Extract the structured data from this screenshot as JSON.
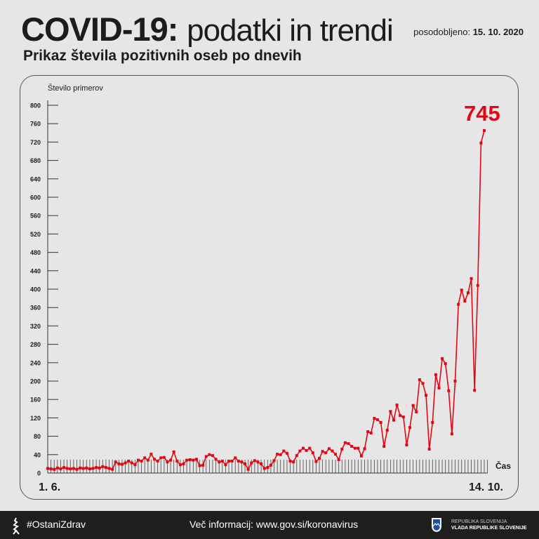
{
  "header": {
    "title_bold": "COVID-19:",
    "title_light": "podatki in trendi",
    "updated_label": "posodobljeno:",
    "updated_date": "15. 10. 2020",
    "subtitle": "Prikaz števila pozitivnih oseb po dnevih"
  },
  "chart_data": {
    "type": "line",
    "title": "",
    "ylabel": "Število primerov",
    "xlabel": "Čas",
    "x_start_label": "1. 6.",
    "x_end_label": "14. 10.",
    "x_range": [
      "2020-06-01",
      "2020-10-14"
    ],
    "ylim": [
      0,
      800
    ],
    "yticks": [
      0,
      40,
      80,
      120,
      160,
      200,
      240,
      280,
      320,
      360,
      400,
      440,
      480,
      520,
      560,
      600,
      640,
      680,
      720,
      760,
      800
    ],
    "highlight_label": "745",
    "line_color": "#e30613",
    "series": [
      {
        "values": [
          10,
          9,
          8,
          11,
          9,
          12,
          10,
          9,
          10,
          8,
          11,
          10,
          11,
          9,
          10,
          12,
          11,
          14,
          12,
          10,
          8,
          24,
          20,
          19,
          22,
          26,
          22,
          18,
          28,
          26,
          33,
          28,
          41,
          30,
          26,
          33,
          34,
          24,
          28,
          46,
          26,
          18,
          20,
          28,
          29,
          28,
          30,
          16,
          17,
          36,
          40,
          38,
          30,
          24,
          26,
          18,
          26,
          26,
          33,
          26,
          24,
          20,
          8,
          22,
          27,
          24,
          20,
          10,
          12,
          17,
          27,
          41,
          40,
          48,
          43,
          26,
          24,
          38,
          48,
          54,
          49,
          54,
          44,
          25,
          32,
          47,
          44,
          53,
          48,
          41,
          29,
          52,
          66,
          64,
          58,
          54,
          54,
          37,
          53,
          90,
          87,
          119,
          116,
          110,
          58,
          93,
          134,
          115,
          148,
          125,
          122,
          61,
          99,
          147,
          133,
          203,
          195,
          169,
          52,
          110,
          214,
          185,
          249,
          238,
          179,
          85,
          200,
          367,
          398,
          374,
          392,
          423,
          180,
          408,
          718,
          745
        ]
      }
    ]
  },
  "footer": {
    "hashtag": "#OstaniZdrav",
    "info": "Več informacij: www.gov.si/koronavirus",
    "gov_line1": "REPUBLIKA SLOVENIJA",
    "gov_line2": "VLADA REPUBLIKE SLOVENIJE"
  }
}
